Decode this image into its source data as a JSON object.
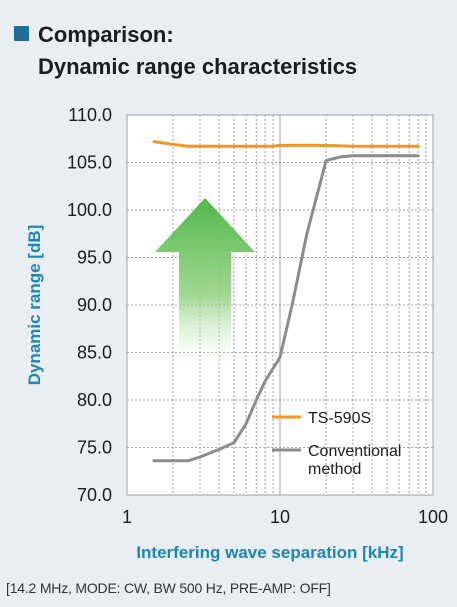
{
  "header": {
    "title_line1": "Comparison:",
    "title_line2": "Dynamic range characteristics"
  },
  "colors": {
    "accent": "#1f6f93",
    "axis_title": "#1f86b3",
    "ts590s": "#f0962a",
    "conventional": "#8c8c8c",
    "arrow_top": "#4fb84a",
    "background": "#e9eef3"
  },
  "chart_data": {
    "type": "line",
    "xlabel": "Interfering wave separation [kHz]",
    "ylabel": "Dynamic range [dB]",
    "xscale": "log",
    "xlim": [
      1,
      100
    ],
    "ylim": [
      70,
      110
    ],
    "x_ticks": [
      "1",
      "10",
      "100"
    ],
    "y_ticks": [
      "110.0",
      "105.0",
      "100.0",
      "95.0",
      "90.0",
      "85.0",
      "80.0",
      "75.0",
      "70.0"
    ],
    "grid": true,
    "legend_position": "bottom-right",
    "series": [
      {
        "name": "TS-590S",
        "color": "#f0962a",
        "x": [
          1.5,
          2,
          2.5,
          3,
          5,
          7,
          9,
          10,
          15,
          20,
          30,
          50,
          80
        ],
        "y": [
          107.2,
          106.9,
          106.7,
          106.7,
          106.7,
          106.7,
          106.7,
          106.8,
          106.8,
          106.8,
          106.7,
          106.7,
          106.7
        ]
      },
      {
        "name": "Conventional method",
        "legend_lines": [
          "Conventional",
          "method"
        ],
        "color": "#8c8c8c",
        "x": [
          1.5,
          2,
          2.5,
          3,
          4,
          5,
          6,
          7,
          8,
          10,
          12,
          15,
          20,
          25,
          30,
          50,
          80
        ],
        "y": [
          73.6,
          73.6,
          73.6,
          74.0,
          74.8,
          75.5,
          77.5,
          80.0,
          82.0,
          84.5,
          90.0,
          97.5,
          105.2,
          105.6,
          105.7,
          105.7,
          105.7
        ]
      }
    ]
  },
  "footnote": "[14.2 MHz, MODE: CW, BW 500 Hz, PRE-AMP: OFF]"
}
